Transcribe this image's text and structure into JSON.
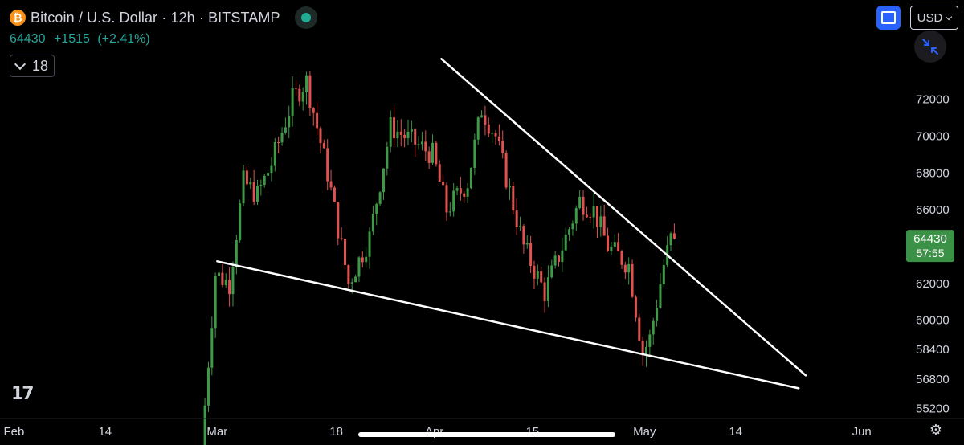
{
  "header": {
    "logo_glyph": "₿",
    "title": "Bitcoin / U.S. Dollar · 12h · BITSTAMP",
    "last_price": "64430",
    "change": "+1515",
    "change_pct": "(+2.41%)",
    "indicator_count": "18"
  },
  "controls": {
    "currency_label": "USD"
  },
  "branding": {
    "logo_text": "17"
  },
  "colors": {
    "up": "#26a69a",
    "candle_up": "#3d9a46",
    "candle_down": "#e0524f",
    "trendline": "#ffffff",
    "price_tag": "#3b9146"
  },
  "icons": {
    "status": "market-status-dot-icon",
    "fullscreen": "fullscreen-icon",
    "shrink": "collapse-arrows-icon",
    "settings": "gear-icon",
    "chevron": "chevron-down-icon"
  },
  "chart_data": {
    "type": "candlestick",
    "interval": "12h",
    "x_tick_labels": [
      "Feb",
      "14",
      "Mar",
      "18",
      "Apr",
      "15",
      "May",
      "14",
      "Jun"
    ],
    "y_tick_labels": [
      "72000",
      "70000",
      "68000",
      "66000",
      "62000",
      "60000",
      "58400",
      "56800",
      "55200"
    ],
    "y_ticks": [
      72000,
      70000,
      68000,
      66000,
      62000,
      60000,
      58400,
      56800,
      55200
    ],
    "price_tag": {
      "price": "64430",
      "countdown": "57:55",
      "value": 64430
    },
    "price_path": [
      [
        "2024-02-28",
        53000
      ],
      [
        "2024-03-01",
        62500
      ],
      [
        "2024-03-03",
        62000
      ],
      [
        "2024-03-05",
        67500
      ],
      [
        "2024-03-07",
        66800
      ],
      [
        "2024-03-09",
        68500
      ],
      [
        "2024-03-12",
        72000
      ],
      [
        "2024-03-14",
        73000
      ],
      [
        "2024-03-17",
        68000
      ],
      [
        "2024-03-20",
        62000
      ],
      [
        "2024-03-23",
        64500
      ],
      [
        "2024-03-26",
        70500
      ],
      [
        "2024-03-28",
        70000
      ],
      [
        "2024-04-01",
        69000
      ],
      [
        "2024-04-03",
        66000
      ],
      [
        "2024-04-06",
        67500
      ],
      [
        "2024-04-08",
        71500
      ],
      [
        "2024-04-10",
        70000
      ],
      [
        "2024-04-12",
        67000
      ],
      [
        "2024-04-14",
        64000
      ],
      [
        "2024-04-17",
        61500
      ],
      [
        "2024-04-19",
        63500
      ],
      [
        "2024-04-22",
        66500
      ],
      [
        "2024-04-24",
        66000
      ],
      [
        "2024-04-26",
        64000
      ],
      [
        "2024-04-29",
        63000
      ],
      [
        "2024-05-01",
        58200
      ],
      [
        "2024-05-02",
        59000
      ],
      [
        "2024-05-04",
        63000
      ],
      [
        "2024-05-05",
        64430
      ]
    ],
    "trendlines": [
      {
        "from": [
          "2024-03-01",
          63200
        ],
        "to": [
          "2024-05-23",
          56300
        ]
      },
      {
        "from": [
          "2024-04-02",
          74200
        ],
        "to": [
          "2024-05-24",
          57000
        ]
      }
    ],
    "x_range": [
      "2024-01-30",
      "2024-06-07"
    ],
    "y_range": [
      54700,
      75000
    ],
    "grid": false,
    "legend": "none"
  }
}
